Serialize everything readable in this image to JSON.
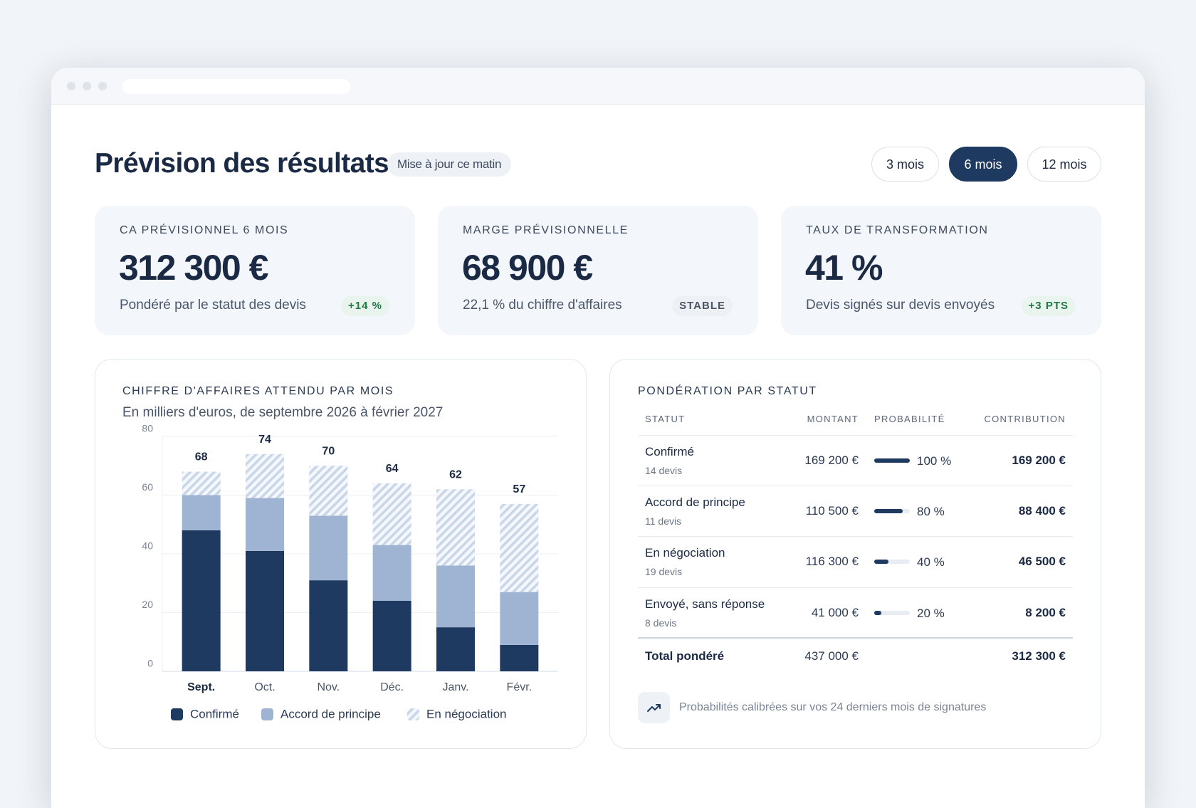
{
  "header": {
    "title": "Prévision des résultats",
    "badge": "Mise à jour ce matin"
  },
  "periods": [
    "3 mois",
    "6 mois",
    "12 mois"
  ],
  "selected_period": 1,
  "kpis": [
    {
      "label": "CA PRÉVISIONNEL 6 MOIS",
      "value": "312 300 €",
      "description": "Pondéré par le statut des devis",
      "badge": "+14 %",
      "badge_color": "#1f7a43"
    },
    {
      "label": "MARGE PRÉVISIONNELLE",
      "value": "68 900 €",
      "description": "22,1 % du chiffre d'affaires",
      "badge": "STABLE",
      "badge_color": "#4b5563"
    },
    {
      "label": "TAUX DE TRANSFORMATION",
      "value": "41 %",
      "description": "Devis signés sur devis envoyés",
      "badge": "+3 PTS",
      "badge_color": "#1f7a43"
    }
  ],
  "chart_data": {
    "type": "bar",
    "stacked": true,
    "title": "CHIFFRE D'AFFAIRES ATTENDU PAR MOIS",
    "subtitle": "En milliers d'euros, de septembre 2026 à février 2027",
    "categories": [
      "Sept.",
      "Oct.",
      "Nov.",
      "Déc.",
      "Janv.",
      "Févr."
    ],
    "series": [
      {
        "name": "Confirmé",
        "color": "#1f3a60",
        "values": [
          48,
          41,
          31,
          24,
          15,
          9
        ]
      },
      {
        "name": "Accord de principe",
        "color": "#9fb3d2",
        "values": [
          12,
          18,
          22,
          19,
          21,
          18
        ]
      },
      {
        "name": "En négociation",
        "color": "#c9d6e8",
        "pattern": "hatch",
        "values": [
          8,
          15,
          17,
          21,
          26,
          30
        ]
      }
    ],
    "totals": [
      68,
      74,
      70,
      64,
      62,
      57
    ],
    "ylim": [
      0,
      80
    ],
    "yticks": [
      0,
      20,
      40,
      60,
      80
    ],
    "grid": true
  },
  "table": {
    "title": "PONDÉRATION PAR STATUT",
    "columns": [
      "STATUT",
      "MONTANT",
      "PROBABILITÉ",
      "CONTRIBUTION"
    ],
    "rows": [
      {
        "status": "Confirmé",
        "count": "14 devis",
        "amount": "169 200 €",
        "probability": {
          "value": 100,
          "label": "100 %"
        },
        "contribution": "169 200 €"
      },
      {
        "status": "Accord de principe",
        "count": "11 devis",
        "amount": "110 500 €",
        "probability": {
          "value": 80,
          "label": "80 %"
        },
        "contribution": "88 400 €"
      },
      {
        "status": "En négociation",
        "count": "19 devis",
        "amount": "116 300 €",
        "probability": {
          "value": 40,
          "label": "40 %"
        },
        "contribution": "46 500 €"
      },
      {
        "status": "Envoyé, sans réponse",
        "count": "8 devis",
        "amount": "41 000 €",
        "probability": {
          "value": 20,
          "label": "20 %"
        },
        "contribution": "8 200 €"
      }
    ],
    "total": {
      "label": "Total pondéré",
      "amount": "437 000 €",
      "contribution": "312 300 €"
    },
    "footnote": "Probabilités calibrées sur vos 24 derniers mois de signatures"
  }
}
